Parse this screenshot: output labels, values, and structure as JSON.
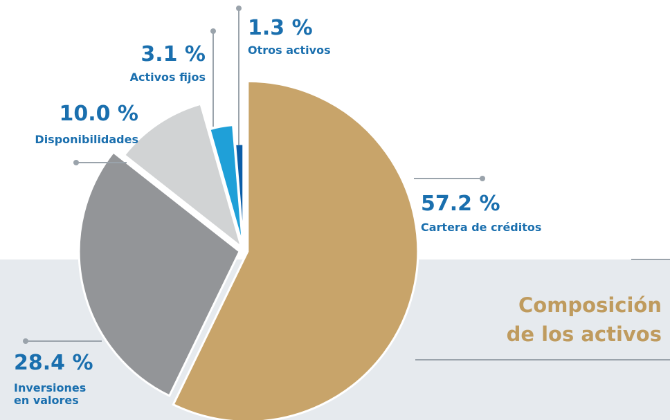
{
  "chart_data": {
    "type": "pie",
    "title": [
      "Composición",
      "de los activos"
    ],
    "categories": [
      "Cartera de créditos",
      "Inversiones en valores",
      "Disponibilidades",
      "Activos fijos",
      "Otros activos"
    ],
    "values": [
      57.2,
      28.4,
      10.0,
      3.1,
      1.3
    ],
    "value_labels": [
      "57.2 %",
      "28.4 %",
      "10.0 %",
      "3.1 %",
      "1.3 %"
    ],
    "colors": [
      "#c8a46a",
      "#939598",
      "#d1d3d4",
      "#1fa0d8",
      "#0b5ea8"
    ]
  }
}
